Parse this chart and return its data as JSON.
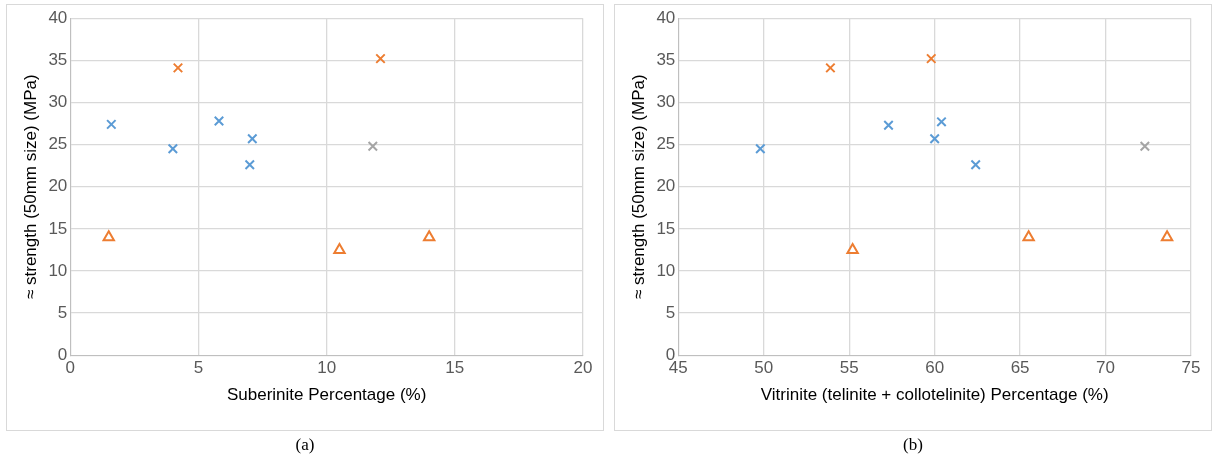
{
  "chart_data": [
    {
      "type": "scatter",
      "xlabel": "Suberinite Percentage (%)",
      "ylabel": "≈ strength (50mm size) (MPa)",
      "annotations": [
        "(a)"
      ],
      "xlim": [
        0,
        20
      ],
      "xticks": [
        0,
        5,
        10,
        15,
        20
      ],
      "ylim": [
        0,
        40
      ],
      "yticks": [
        0,
        5,
        10,
        15,
        20,
        25,
        30,
        35,
        40
      ],
      "grid": true,
      "legend": false,
      "series": [
        {
          "color": "#5b9bd5",
          "marker": "cross",
          "x": [
            1.6,
            4.0,
            5.8,
            7.1,
            7.0
          ],
          "values": [
            27.4,
            24.5,
            27.8,
            25.7,
            22.6
          ]
        },
        {
          "color": "#ed7d31",
          "marker": "cross",
          "x": [
            4.2,
            12.1
          ],
          "values": [
            34.1,
            35.2
          ]
        },
        {
          "color": "#a5a5a5",
          "marker": "cross",
          "x": [
            11.8
          ],
          "values": [
            24.8
          ]
        },
        {
          "color": "#ed7d31",
          "marker": "triangle",
          "x": [
            1.5,
            10.5,
            14.0
          ],
          "values": [
            14.0,
            12.5,
            14.0
          ]
        }
      ]
    },
    {
      "type": "scatter",
      "xlabel": "Vitrinite (telinite + collotelinite) Percentage (%)",
      "ylabel": "≈ strength (50mm size) (MPa)",
      "annotations": [
        "(b)"
      ],
      "xlim": [
        45,
        75
      ],
      "xticks": [
        45,
        50,
        55,
        60,
        65,
        70,
        75
      ],
      "ylim": [
        0,
        40
      ],
      "yticks": [
        0,
        5,
        10,
        15,
        20,
        25,
        30,
        35,
        40
      ],
      "grid": true,
      "legend": false,
      "series": [
        {
          "color": "#5b9bd5",
          "marker": "cross",
          "x": [
            49.8,
            57.3,
            60.4,
            60.0,
            62.4
          ],
          "values": [
            24.5,
            27.3,
            27.7,
            25.7,
            22.6
          ]
        },
        {
          "color": "#ed7d31",
          "marker": "cross",
          "x": [
            53.9,
            59.8
          ],
          "values": [
            34.1,
            35.2
          ]
        },
        {
          "color": "#a5a5a5",
          "marker": "cross",
          "x": [
            72.3
          ],
          "values": [
            24.8
          ]
        },
        {
          "color": "#ed7d31",
          "marker": "triangle",
          "x": [
            55.2,
            65.5,
            73.6
          ],
          "values": [
            12.5,
            14.0,
            14.0
          ]
        }
      ]
    }
  ]
}
